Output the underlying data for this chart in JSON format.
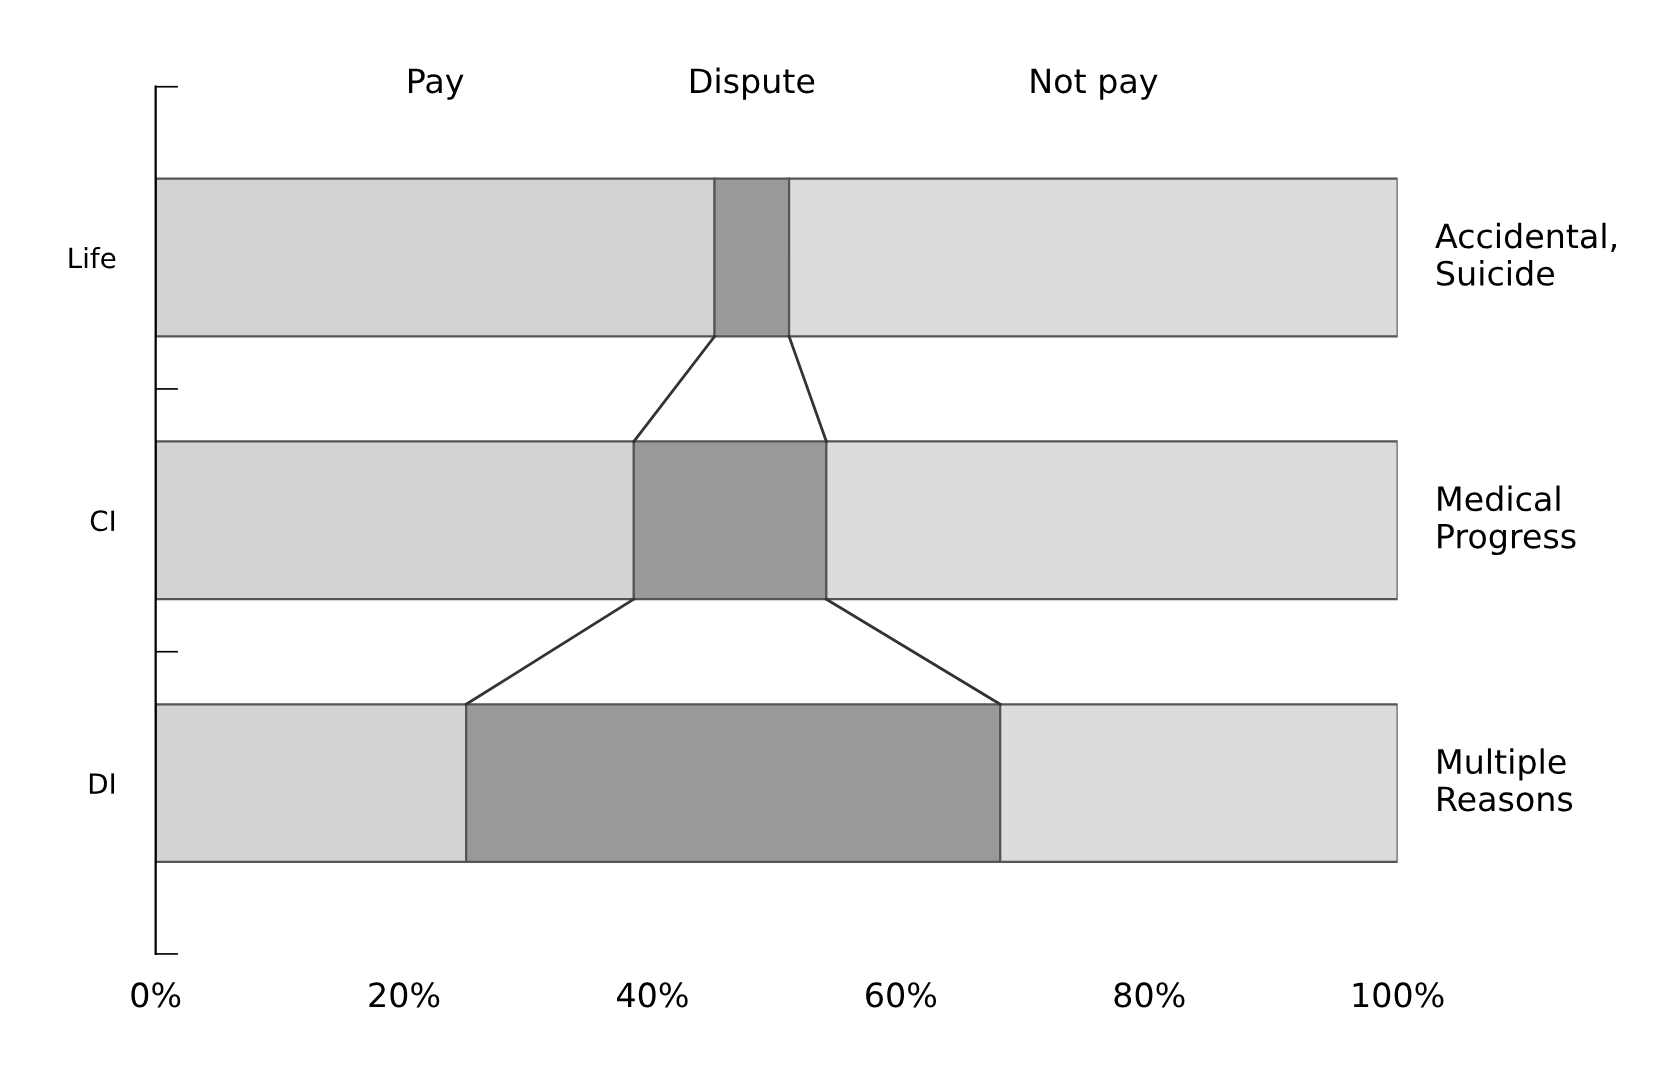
{
  "chart_data": {
    "type": "bar",
    "orientation": "horizontal",
    "stacked": true,
    "categories": [
      "Life",
      "CI",
      "DI"
    ],
    "series": [
      {
        "name": "Pay",
        "color": "#d3d3d3",
        "values": [
          45,
          38.5,
          25
        ]
      },
      {
        "name": "Dispute",
        "color": "#999999",
        "values": [
          6,
          15.5,
          43
        ]
      },
      {
        "name": "Not pay",
        "color": "#dcdcdc",
        "values": [
          49,
          46,
          32
        ]
      }
    ],
    "annotations": [
      "Accidental,\nSuicide",
      "Medical\nProgress",
      "Multiple\nReasons"
    ],
    "xlim": [
      0,
      100
    ],
    "xticks": [
      {
        "value": 0,
        "label": "0%"
      },
      {
        "value": 20,
        "label": "20%"
      },
      {
        "value": 40,
        "label": "40%"
      },
      {
        "value": 60,
        "label": "60%"
      },
      {
        "value": 80,
        "label": "80%"
      },
      {
        "value": 100,
        "label": "100%"
      }
    ],
    "grid": false,
    "legend": "top"
  }
}
